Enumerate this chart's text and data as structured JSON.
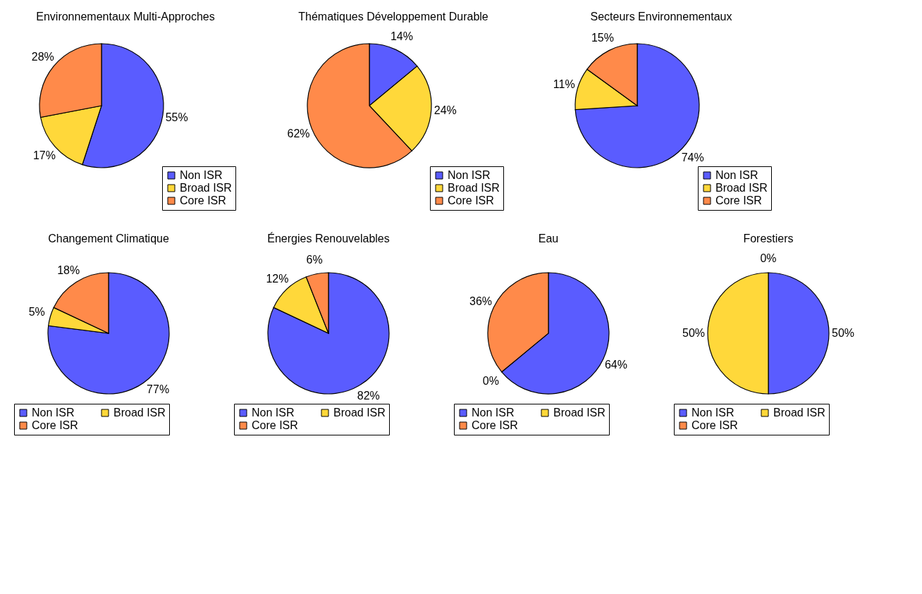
{
  "chart_data": [
    {
      "type": "pie",
      "title": "Environnementaux Multi-Approches",
      "categories": [
        "Non ISR",
        "Broad ISR",
        "Core ISR"
      ],
      "values": [
        55,
        17,
        28
      ],
      "value_labels": [
        "55%",
        "17%",
        "28%"
      ],
      "colors": [
        "#5a5cff",
        "#ffd83a",
        "#ff8a4a"
      ],
      "legend": "bottom right"
    },
    {
      "type": "pie",
      "title": "Thématiques Développement Durable",
      "categories": [
        "Non ISR",
        "Broad ISR",
        "Core ISR"
      ],
      "values": [
        14,
        24,
        62
      ],
      "value_labels": [
        "14%",
        "24%",
        "62%"
      ],
      "colors": [
        "#5a5cff",
        "#ffd83a",
        "#ff8a4a"
      ],
      "legend": "bottom right"
    },
    {
      "type": "pie",
      "title": "Secteurs Environnementaux",
      "categories": [
        "Non ISR",
        "Broad ISR",
        "Core ISR"
      ],
      "values": [
        74,
        11,
        15
      ],
      "value_labels": [
        "74%",
        "11%",
        "15%"
      ],
      "colors": [
        "#5a5cff",
        "#ffd83a",
        "#ff8a4a"
      ],
      "legend": "bottom right"
    },
    {
      "type": "pie",
      "title": "Changement Climatique",
      "categories": [
        "Non ISR",
        "Broad ISR",
        "Core ISR"
      ],
      "values": [
        77,
        5,
        18
      ],
      "value_labels": [
        "77%",
        "5%",
        "18%"
      ],
      "colors": [
        "#5a5cff",
        "#ffd83a",
        "#ff8a4a"
      ],
      "legend": "bottom"
    },
    {
      "type": "pie",
      "title": "Énergies Renouvelables",
      "categories": [
        "Non ISR",
        "Broad ISR",
        "Core ISR"
      ],
      "values": [
        82,
        12,
        6
      ],
      "value_labels": [
        "82%",
        "12%",
        "6%"
      ],
      "colors": [
        "#5a5cff",
        "#ffd83a",
        "#ff8a4a"
      ],
      "legend": "bottom"
    },
    {
      "type": "pie",
      "title": "Eau",
      "categories": [
        "Non ISR",
        "Broad ISR",
        "Core ISR"
      ],
      "values": [
        64,
        0,
        36
      ],
      "value_labels": [
        "64%",
        "0%",
        "36%"
      ],
      "colors": [
        "#5a5cff",
        "#ffd83a",
        "#ff8a4a"
      ],
      "legend": "bottom"
    },
    {
      "type": "pie",
      "title": "Forestiers",
      "categories": [
        "Non ISR",
        "Broad ISR",
        "Core ISR"
      ],
      "values": [
        50,
        50,
        0
      ],
      "value_labels": [
        "50%",
        "50%",
        "0%"
      ],
      "colors": [
        "#5a5cff",
        "#ffd83a",
        "#ff8a4a"
      ],
      "legend": "bottom"
    }
  ]
}
